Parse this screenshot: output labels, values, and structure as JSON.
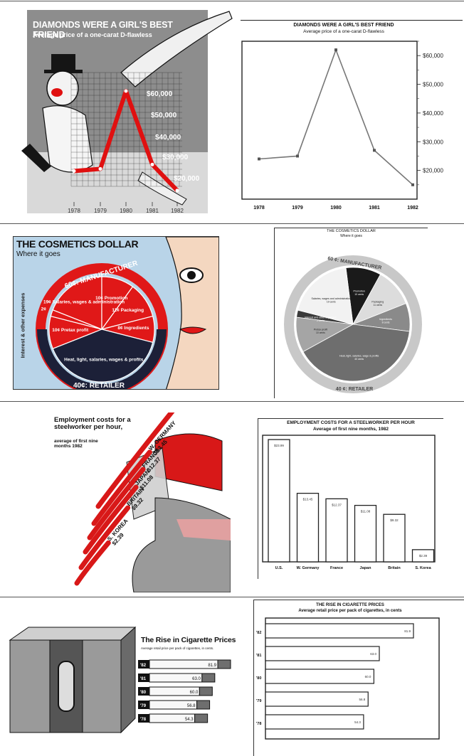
{
  "chart_data": [
    {
      "type": "line",
      "variant": "illustrated",
      "title": "DIAMONDS WERE A GIRL'S BEST FRIEND",
      "subtitle": "Average price of a one-carat D-flawless",
      "x": [
        "1978",
        "1979",
        "1980",
        "1981",
        "1982"
      ],
      "values": [
        23000,
        24000,
        60000,
        26000,
        14000
      ],
      "ytick_labels": [
        "$60,000",
        "$50,000",
        "$40,000",
        "$30,000",
        "$20,000"
      ],
      "colors": {
        "background": "#8d8d8d",
        "line": "#e01010"
      }
    },
    {
      "type": "line",
      "variant": "plain",
      "title": "DIAMONDS WERE A GIRL'S BEST FRIEND",
      "subtitle": "Average price of a one-carat D-flawless",
      "x": [
        "1978",
        "1979",
        "1980",
        "1981",
        "1982"
      ],
      "values": [
        24000,
        25000,
        62000,
        27000,
        15000
      ],
      "ylim": [
        10000,
        65000
      ],
      "ytick_labels": [
        "$60,000",
        "$50,000",
        "$40,000",
        "$30,000",
        "$20,000"
      ],
      "colors": {
        "line": "#777777"
      }
    },
    {
      "type": "pie",
      "variant": "illustrated",
      "title": "THE COSMETICS DOLLAR",
      "subtitle": "Where it goes",
      "ring_labels": [
        "60¢: MANUFACTURER",
        "40¢: RETAILER"
      ],
      "side_label": "Interest & other expenses",
      "slices": [
        {
          "label": "19¢ Salaries, wages & administration",
          "value": 19,
          "color": "#e01818"
        },
        {
          "label": "10¢ Promotion",
          "value": 10,
          "color": "#e01818"
        },
        {
          "label": "11¢ Packaging",
          "value": 11,
          "color": "#e01818"
        },
        {
          "label": "8¢ Ingredients",
          "value": 8,
          "color": "#e01818"
        },
        {
          "label": "Heat, light, salaries, wages & profits",
          "value": 40,
          "color": "#1c2038"
        },
        {
          "label": "10¢ Pretax profit",
          "value": 10,
          "color": "#e01818"
        },
        {
          "label": "2¢",
          "value": 2,
          "color": "#e01818"
        }
      ]
    },
    {
      "type": "pie",
      "variant": "plain",
      "title": "THE COSMETICS DOLLAR",
      "subtitle": "Where it goes",
      "ring_labels": [
        "60 ¢: MANUFACTURER",
        "40 ¢: RETAILER"
      ],
      "slices": [
        {
          "label": "Promotion",
          "sublabel": "10 cents",
          "value": 10,
          "color": "#1a1a1a"
        },
        {
          "label": "Packaging",
          "sublabel": "11 cents",
          "value": 11,
          "color": "#dcdcdc"
        },
        {
          "label": "Ingredients",
          "sublabel": "8 cents",
          "value": 8,
          "color": "#8a8a8a"
        },
        {
          "label": "Heat, light, salaries, wage & profits",
          "sublabel": "40 cents",
          "value": 40,
          "color": "#6e6e6e"
        },
        {
          "label": "Pretax profit",
          "sublabel": "10 cents",
          "value": 10,
          "color": "#a5a5a5"
        },
        {
          "label": "Interest and other expenses",
          "sublabel": "2 cents",
          "value": 2,
          "color": "#3a3a3a"
        },
        {
          "label": "Salaries, wages and administration",
          "sublabel": "19 cents",
          "value": 19,
          "color": "#f2f2f2"
        }
      ]
    },
    {
      "type": "bar",
      "variant": "illustrated",
      "title": "Employment costs for a steelworker per hour,",
      "subtitle": "average of first nine months 1982",
      "categories": [
        "U.S.",
        "W. GERMANY",
        "FRANCE",
        "JAPAN",
        "BRITAIN",
        "S. KOREA"
      ],
      "value_labels": [
        "$23.99",
        "$13.45",
        "$12.37",
        "$11.08",
        "$9.32",
        "$2.39"
      ],
      "values": [
        23.99,
        13.45,
        12.37,
        11.08,
        9.32,
        2.39
      ],
      "colors": {
        "streak": "#d81818"
      }
    },
    {
      "type": "bar",
      "variant": "plain",
      "title": "EMPLOYMENT COSTS FOR A STEELWORKER PER HOUR",
      "subtitle": "Average of first nine months, 1982",
      "categories": [
        "U.S.",
        "W. Germany",
        "France",
        "Japan",
        "Britain",
        "S. Korea"
      ],
      "value_labels": [
        "$23.99",
        "$13.45",
        "$12.37",
        "$11.08",
        "$9.32",
        "$2.39"
      ],
      "values": [
        23.99,
        13.45,
        12.37,
        11.08,
        9.32,
        2.39
      ]
    },
    {
      "type": "bar",
      "orientation": "horizontal",
      "variant": "illustrated",
      "title": "The Rise in Cigarette Prices",
      "subtitle": "Average retail price per pack of cigarettes, in cents.",
      "categories": [
        "'82",
        "'81",
        "'80",
        "'79",
        "'78"
      ],
      "value_labels": [
        "81.9",
        "63.0",
        "60.0",
        "56.8",
        "54.3"
      ],
      "values": [
        81.9,
        63.0,
        60.0,
        56.8,
        54.3
      ]
    },
    {
      "type": "bar",
      "orientation": "horizontal",
      "variant": "plain",
      "title": "THE RISE IN CIGARETTE PRICES",
      "subtitle": "Average retail price per pack of cigarettes, in cents",
      "categories": [
        "'82",
        "'81",
        "'80",
        "'79",
        "'78"
      ],
      "value_labels": [
        "81.9",
        "63.0",
        "60.0",
        "56.8",
        "54.3"
      ],
      "values": [
        81.9,
        63.0,
        60.0,
        56.8,
        54.3
      ]
    }
  ]
}
